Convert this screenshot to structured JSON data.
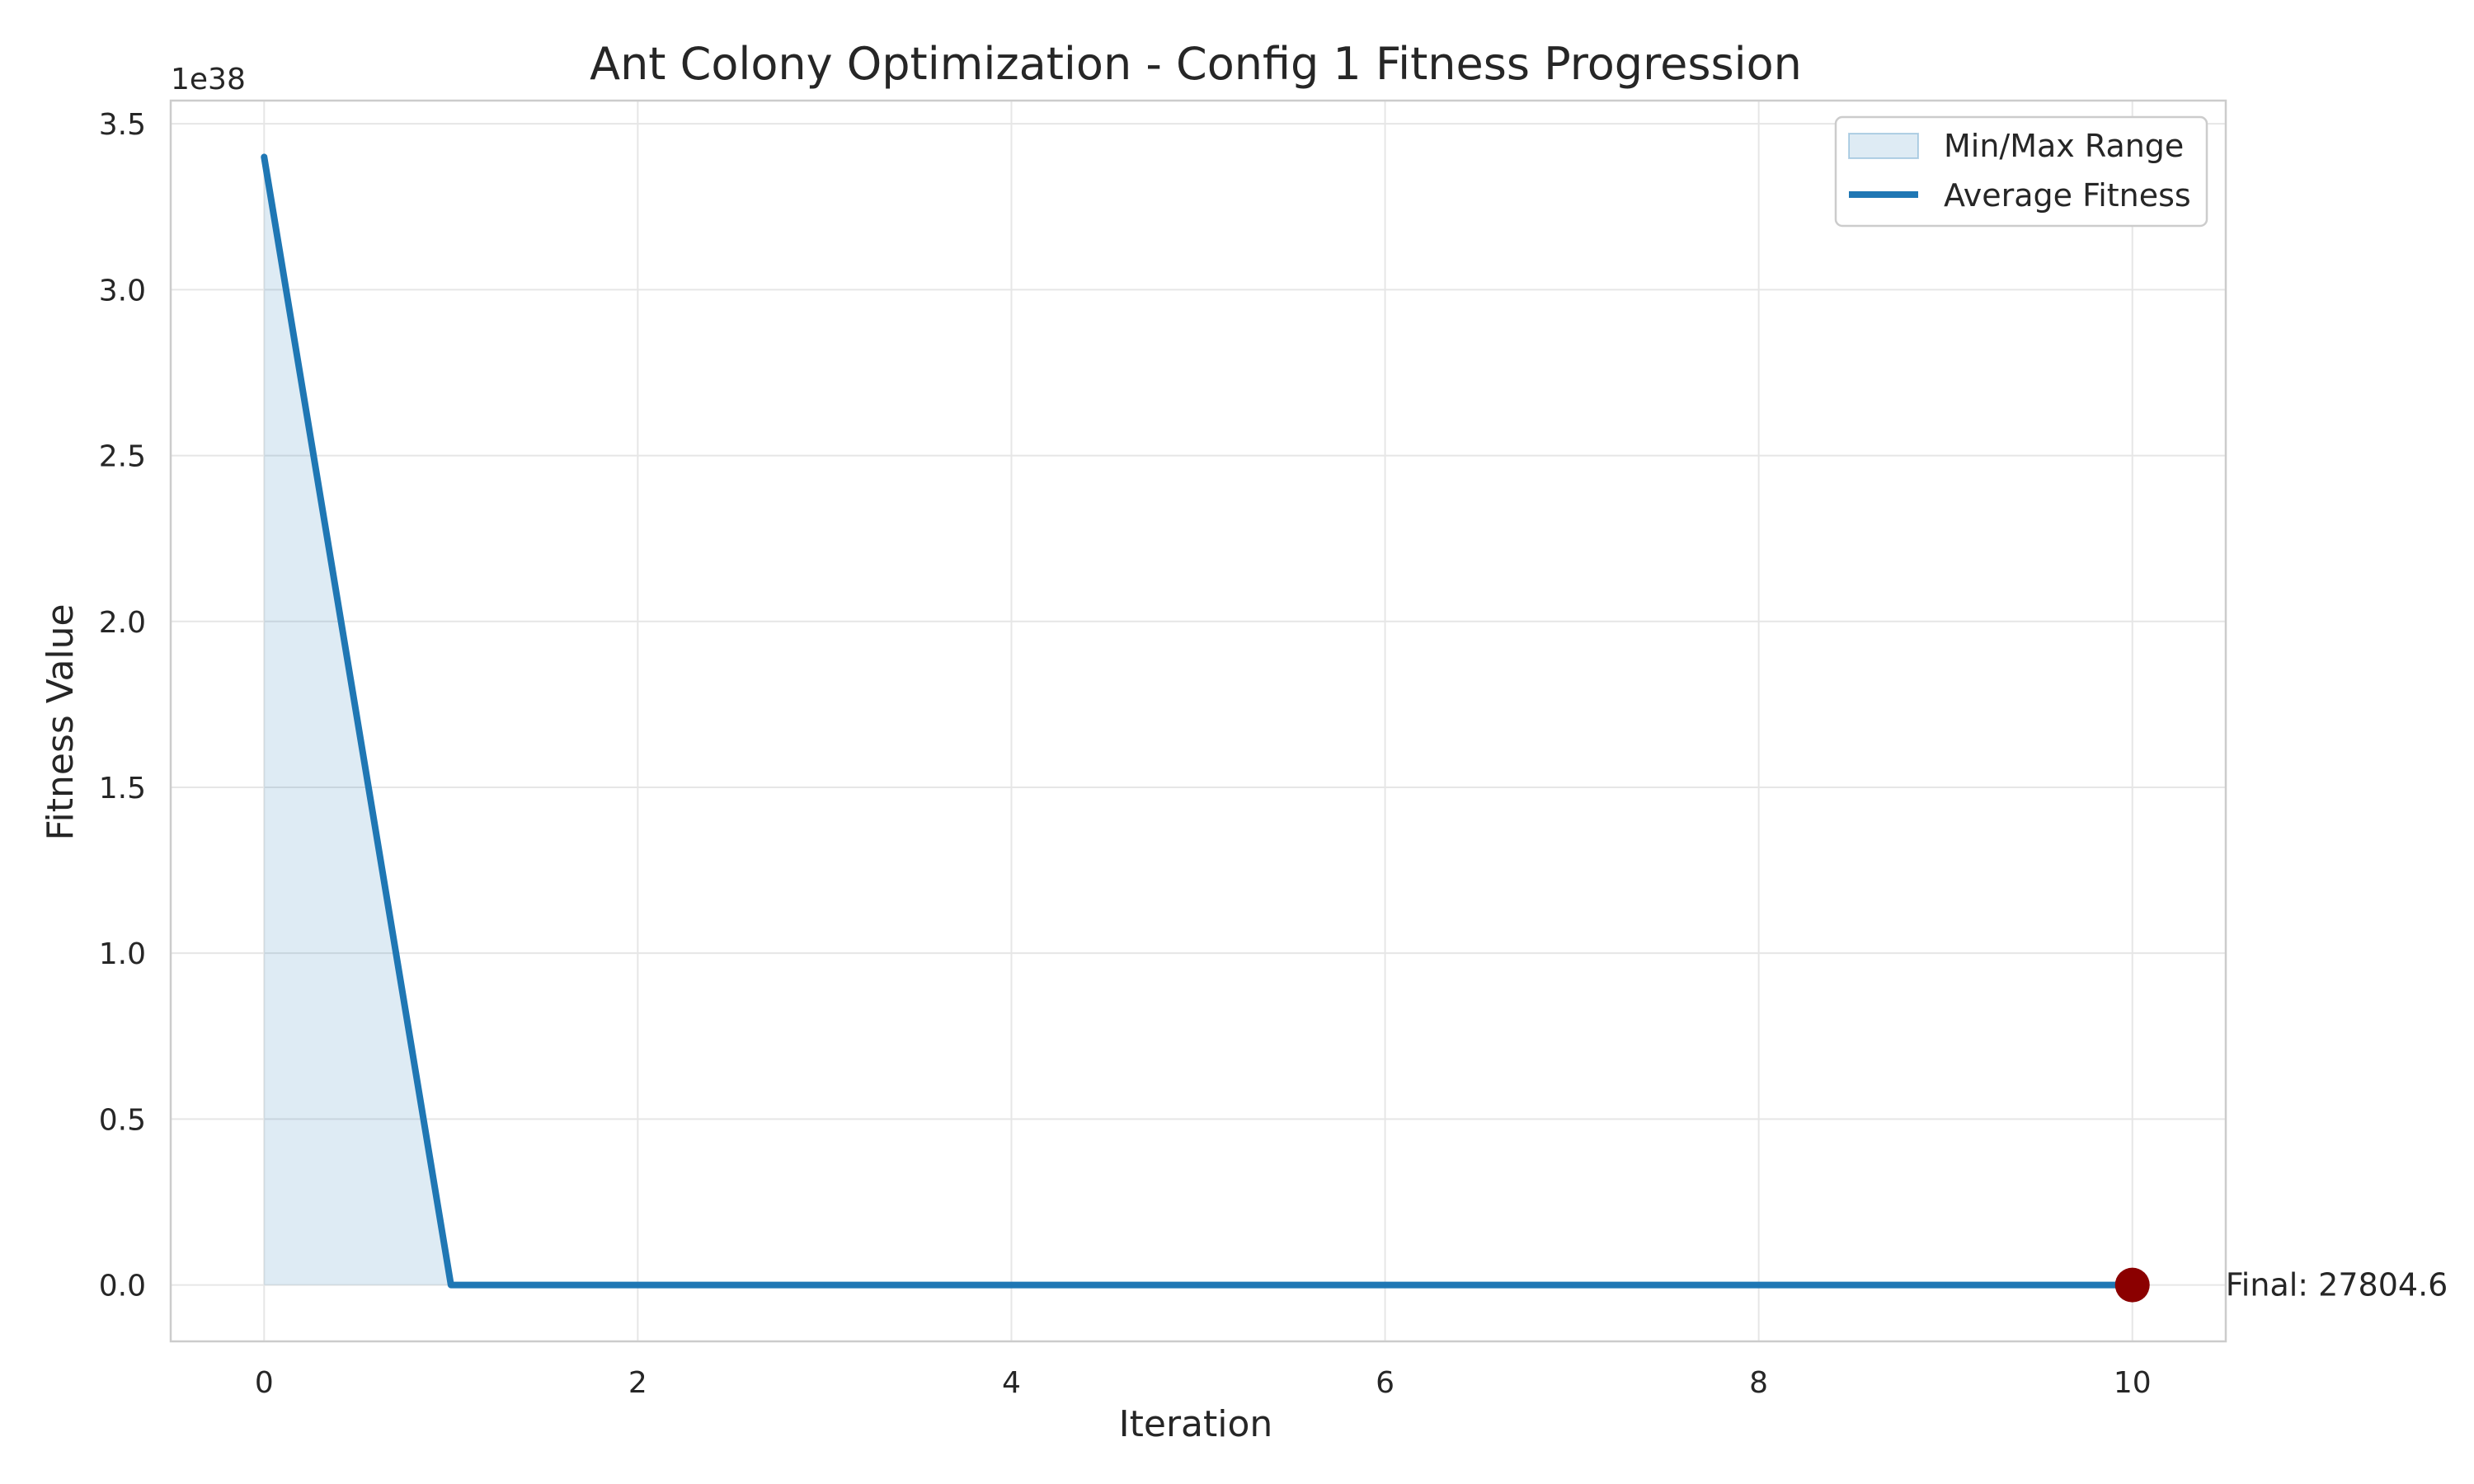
{
  "chart_data": {
    "type": "line",
    "title": "Ant Colony Optimization - Config 1 Fitness Progression",
    "xlabel": "Iteration",
    "ylabel": "Fitness Value",
    "y_offset_label": "1e38",
    "xlim": [
      -0.5,
      10.5
    ],
    "ylim": [
      -0.17,
      3.57
    ],
    "y_scale_factor": 1e+38,
    "x_ticks": [
      0,
      2,
      4,
      6,
      8,
      10
    ],
    "y_ticks": [
      0.0,
      0.5,
      1.0,
      1.5,
      2.0,
      2.5,
      3.0,
      3.5
    ],
    "x_tick_labels": [
      "0",
      "2",
      "4",
      "6",
      "8",
      "10"
    ],
    "y_tick_labels": [
      "0.0",
      "0.5",
      "1.0",
      "1.5",
      "2.0",
      "2.5",
      "3.0",
      "3.5"
    ],
    "grid": true,
    "legend_position": "top-right",
    "series": [
      {
        "name": "Average Fitness",
        "color": "#1f77b4",
        "x": [
          0,
          1,
          2,
          3,
          4,
          5,
          6,
          7,
          8,
          9,
          10
        ],
        "values": [
          3.4,
          0,
          0,
          0,
          0,
          0,
          0,
          0,
          0,
          0,
          0
        ]
      }
    ],
    "range_band": {
      "name": "Min/Max Range",
      "color": "#1f77b4"
    },
    "final_point": {
      "x": 10,
      "y": 0,
      "label": "Final: 27804.6",
      "color": "#8b0000"
    }
  }
}
